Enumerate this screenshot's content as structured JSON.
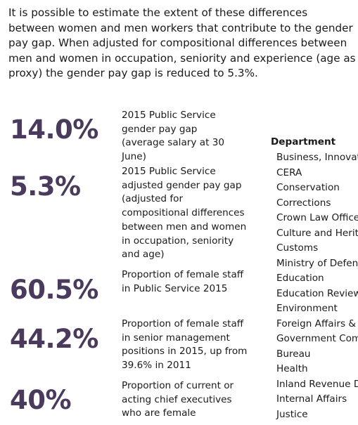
{
  "intro_text": "It is possible to estimate the extent of these differences between women and men workers that contribute to the gender pay gap. When adjusted for compositional differences between men and women in occupation, seniority and experience (age as proxy) the gender pay gap is reduced to 5.3%.",
  "stats": [
    {
      "value": "14.0%",
      "description": "2015 Public Service gender pay gap (average salary at 30 June)"
    },
    {
      "value": "5.3%",
      "description": "2015 Public Service adjusted gender pay gap (adjusted for compositional differences between men and women in occupation, seniority and age)"
    },
    {
      "value": "60.5%",
      "description": "Proportion of female staff in Public Service 2015"
    },
    {
      "value": "44.2%",
      "description": "Proportion of female staff in senior management positions in 2015, up from 39.6% in 2011"
    },
    {
      "value": "40%",
      "description": "Proportion of current or acting chief executives who are female"
    }
  ],
  "department": {
    "heading": "Department",
    "items": [
      "Business, Innovat",
      "CERA",
      "Conservation",
      "Corrections",
      "Crown Law Office",
      "Culture and Herit",
      "Customs",
      "Ministry of Defen",
      "Education",
      "Education Review",
      "Environment",
      "Foreign Affairs &",
      "Government Com",
      "Bureau",
      "Health",
      "Inland Revenue D",
      "Internal Affairs",
      "Justice"
    ]
  }
}
